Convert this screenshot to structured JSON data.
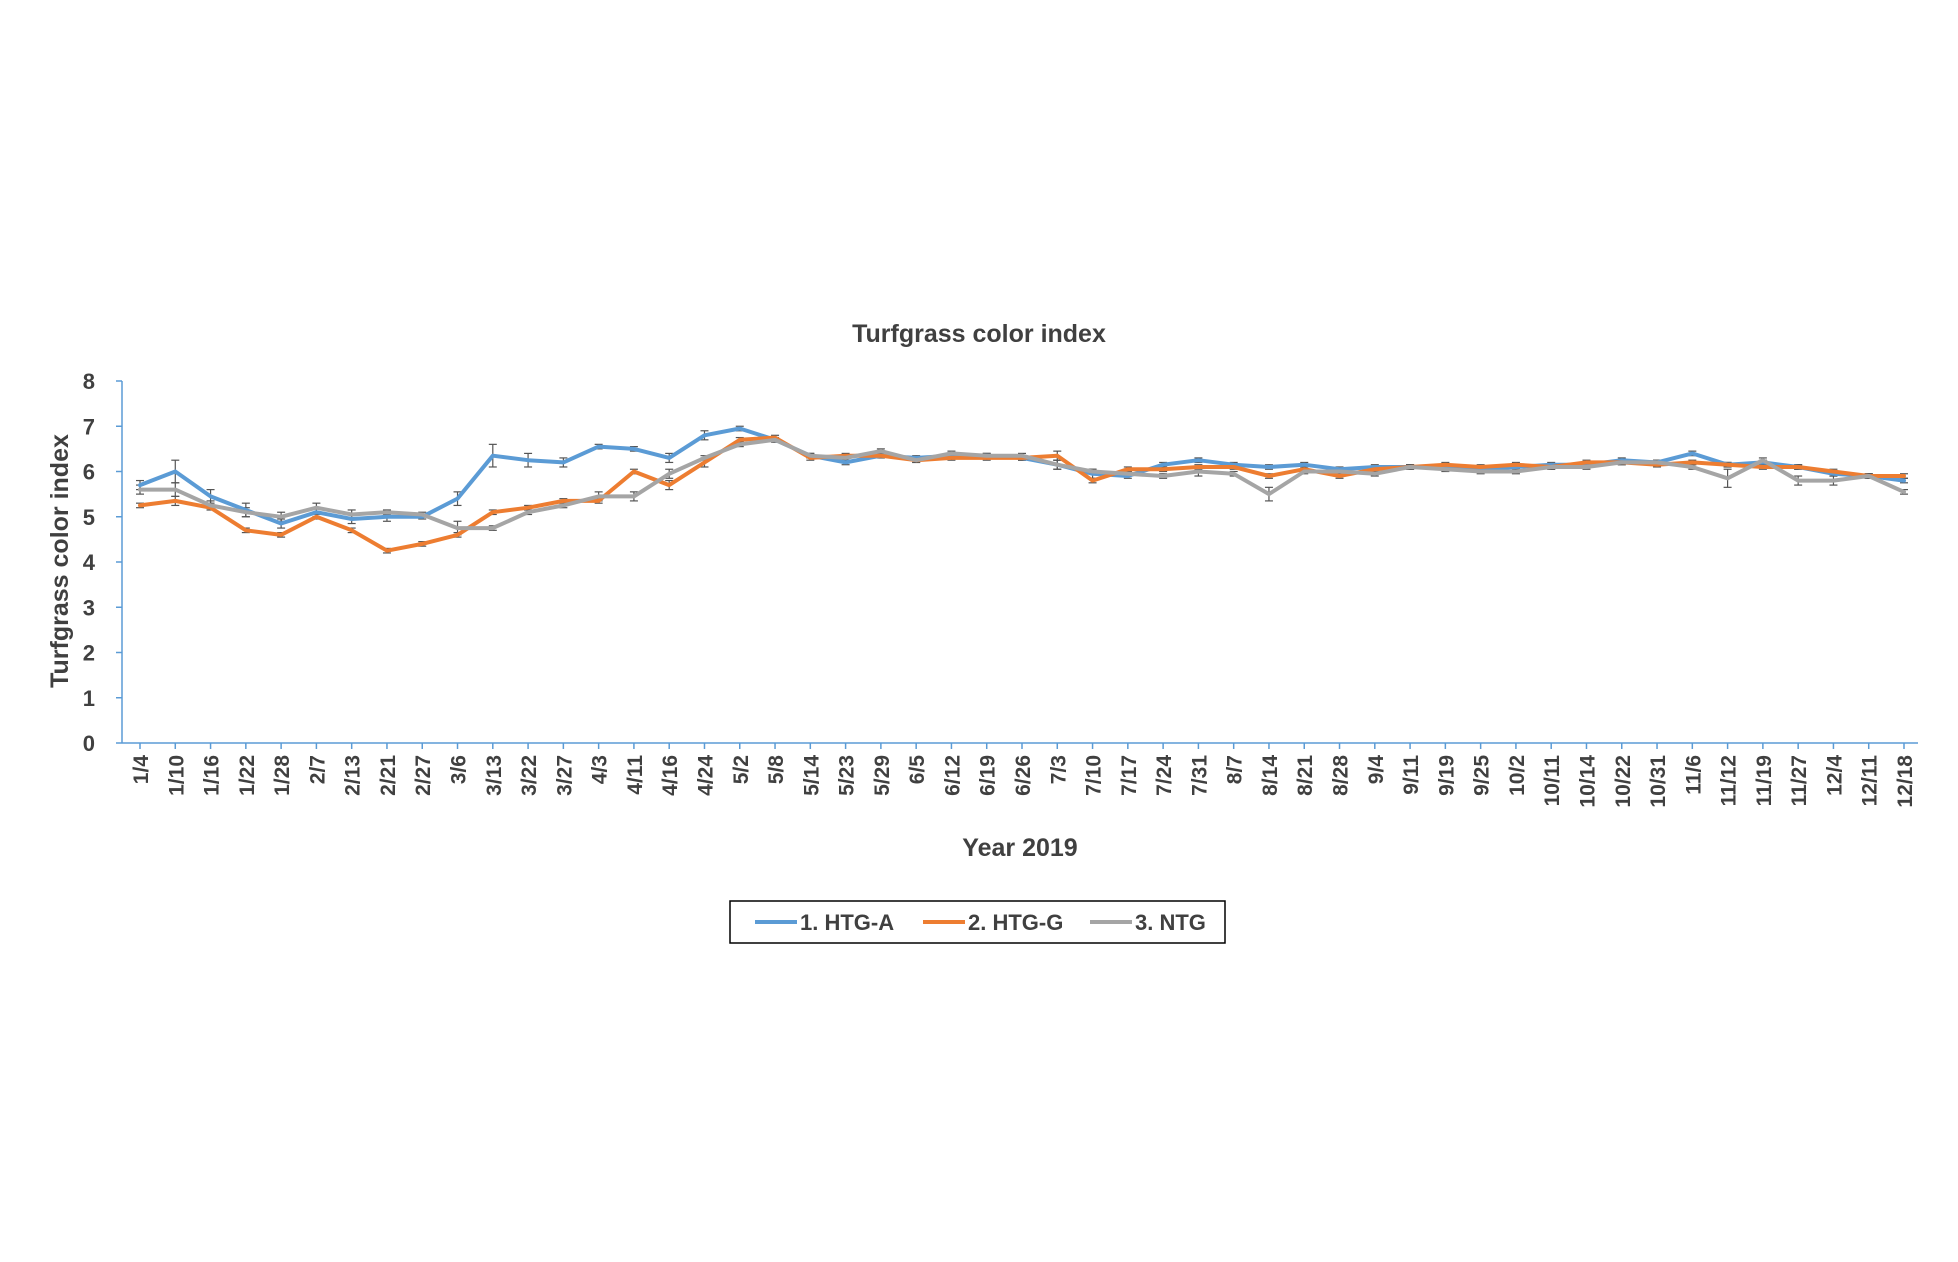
{
  "chart_data": {
    "type": "line",
    "title": "Turfgrass color index",
    "xlabel": "Year 2019",
    "ylabel": "Turfgrass color index",
    "ylim": [
      0,
      8
    ],
    "yticks": [
      0,
      1,
      2,
      3,
      4,
      5,
      6,
      7,
      8
    ],
    "grid": false,
    "legend_position": "bottom",
    "categories": [
      "1/4",
      "1/10",
      "1/16",
      "1/22",
      "1/28",
      "2/7",
      "2/13",
      "2/21",
      "2/27",
      "3/6",
      "3/13",
      "3/22",
      "3/27",
      "4/3",
      "4/11",
      "4/16",
      "4/24",
      "5/2",
      "5/8",
      "5/14",
      "5/23",
      "5/29",
      "6/5",
      "6/12",
      "6/19",
      "6/26",
      "7/3",
      "7/10",
      "7/17",
      "7/24",
      "7/31",
      "8/7",
      "8/14",
      "8/21",
      "8/28",
      "9/4",
      "9/11",
      "9/19",
      "9/25",
      "10/2",
      "10/11",
      "10/14",
      "10/22",
      "10/31",
      "11/6",
      "11/12",
      "11/19",
      "11/27",
      "12/4",
      "12/11",
      "12/18"
    ],
    "series": [
      {
        "name": "1. HTG-A",
        "color": "#5B9BD5",
        "values": [
          5.7,
          6.0,
          5.45,
          5.15,
          4.85,
          5.1,
          4.95,
          5.0,
          5.0,
          5.4,
          6.35,
          6.25,
          6.2,
          6.55,
          6.5,
          6.3,
          6.8,
          6.95,
          6.7,
          6.35,
          6.2,
          6.35,
          6.3,
          6.35,
          6.35,
          6.3,
          6.15,
          5.95,
          5.9,
          6.15,
          6.25,
          6.15,
          6.1,
          6.15,
          6.05,
          6.1,
          6.1,
          6.1,
          6.05,
          6.1,
          6.15,
          6.15,
          6.25,
          6.2,
          6.4,
          6.15,
          6.2,
          6.1,
          5.95,
          5.9,
          5.8
        ],
        "error": [
          0.1,
          0.25,
          0.15,
          0.15,
          0.1,
          0.1,
          0.1,
          0.1,
          0.05,
          0.15,
          0.25,
          0.15,
          0.1,
          0.05,
          0.05,
          0.1,
          0.1,
          0.05,
          0.05,
          0.05,
          0.05,
          0.05,
          0.05,
          0.05,
          0.05,
          0.05,
          0.1,
          0.1,
          0.05,
          0.05,
          0.05,
          0.05,
          0.05,
          0.05,
          0.05,
          0.05,
          0.05,
          0.05,
          0.05,
          0.05,
          0.05,
          0.05,
          0.05,
          0.05,
          0.05,
          0.05,
          0.05,
          0.05,
          0.05,
          0.05,
          0.05
        ]
      },
      {
        "name": "2. HTG-G",
        "color": "#ED7D31",
        "values": [
          5.25,
          5.35,
          5.2,
          4.7,
          4.6,
          5.0,
          4.7,
          4.25,
          4.4,
          4.6,
          5.1,
          5.2,
          5.35,
          5.35,
          6.0,
          5.7,
          6.2,
          6.7,
          6.75,
          6.3,
          6.35,
          6.35,
          6.25,
          6.3,
          6.3,
          6.3,
          6.35,
          5.8,
          6.05,
          6.05,
          6.1,
          6.1,
          5.9,
          6.05,
          5.9,
          6.05,
          6.1,
          6.15,
          6.1,
          6.15,
          6.1,
          6.2,
          6.2,
          6.15,
          6.2,
          6.15,
          6.1,
          6.1,
          6.0,
          5.9,
          5.9
        ],
        "error": [
          0.05,
          0.1,
          0.05,
          0.05,
          0.05,
          0.05,
          0.05,
          0.05,
          0.05,
          0.05,
          0.05,
          0.05,
          0.05,
          0.05,
          0.05,
          0.1,
          0.1,
          0.05,
          0.05,
          0.05,
          0.05,
          0.05,
          0.05,
          0.05,
          0.05,
          0.05,
          0.1,
          0.05,
          0.05,
          0.05,
          0.05,
          0.05,
          0.05,
          0.05,
          0.05,
          0.05,
          0.05,
          0.05,
          0.05,
          0.05,
          0.05,
          0.05,
          0.05,
          0.05,
          0.05,
          0.05,
          0.05,
          0.05,
          0.05,
          0.05,
          0.05
        ]
      },
      {
        "name": "3. NTG",
        "color": "#A5A5A5",
        "values": [
          5.6,
          5.6,
          5.25,
          5.1,
          5.0,
          5.2,
          5.05,
          5.1,
          5.05,
          4.75,
          4.75,
          5.1,
          5.25,
          5.45,
          5.45,
          5.95,
          6.3,
          6.6,
          6.7,
          6.35,
          6.3,
          6.45,
          6.25,
          6.4,
          6.35,
          6.35,
          6.15,
          6.0,
          5.95,
          5.9,
          6.0,
          5.95,
          5.5,
          6.0,
          6.0,
          5.95,
          6.1,
          6.05,
          6.0,
          6.0,
          6.1,
          6.1,
          6.2,
          6.2,
          6.1,
          5.85,
          6.25,
          5.8,
          5.8,
          5.9,
          5.55
        ],
        "error": [
          0.1,
          0.15,
          0.1,
          0.1,
          0.1,
          0.1,
          0.1,
          0.05,
          0.05,
          0.15,
          0.05,
          0.05,
          0.05,
          0.1,
          0.1,
          0.1,
          0.05,
          0.05,
          0.05,
          0.05,
          0.05,
          0.05,
          0.05,
          0.05,
          0.05,
          0.05,
          0.1,
          0.05,
          0.05,
          0.05,
          0.1,
          0.05,
          0.15,
          0.05,
          0.05,
          0.05,
          0.05,
          0.05,
          0.05,
          0.05,
          0.05,
          0.05,
          0.05,
          0.05,
          0.05,
          0.2,
          0.05,
          0.1,
          0.1,
          0.05,
          0.05
        ]
      }
    ]
  }
}
